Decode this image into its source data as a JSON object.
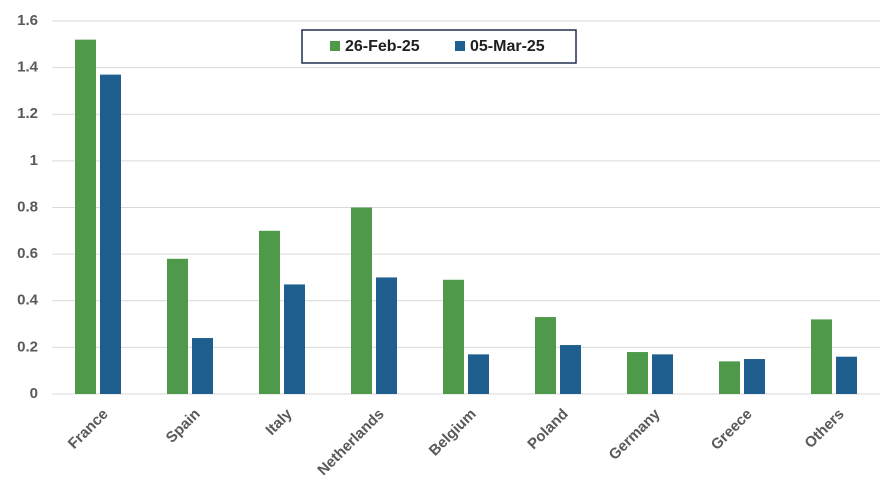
{
  "chart_data": {
    "type": "bar",
    "categories": [
      "France",
      "Spain",
      "Italy",
      "Netherlands",
      "Belgium",
      "Poland",
      "Germany",
      "Greece",
      "Others"
    ],
    "series": [
      {
        "name": "26-Feb-25",
        "color": "#4e9a4a",
        "values": [
          1.52,
          0.58,
          0.7,
          0.8,
          0.49,
          0.33,
          0.18,
          0.14,
          0.32
        ]
      },
      {
        "name": "05-Mar-25",
        "color": "#1f5f8f",
        "values": [
          1.37,
          0.24,
          0.47,
          0.5,
          0.17,
          0.21,
          0.17,
          0.15,
          0.16
        ]
      }
    ],
    "ylim": [
      0,
      1.6
    ],
    "yticks": [
      0,
      0.2,
      0.4,
      0.6,
      0.8,
      1,
      1.2,
      1.4,
      1.6
    ],
    "grid": true,
    "legend": "top"
  }
}
